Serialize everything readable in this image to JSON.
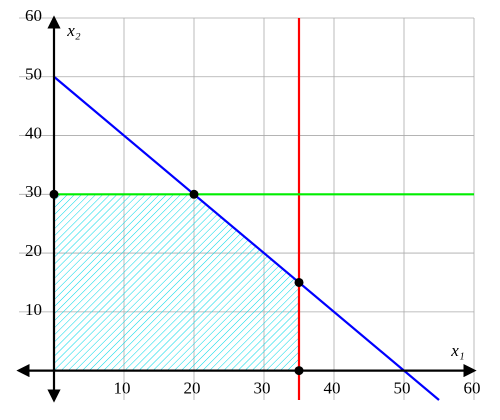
{
  "chart_data": {
    "type": "line",
    "x_label": "x₁",
    "y_label": "x₂",
    "xlim": [
      -5,
      60
    ],
    "ylim": [
      -5,
      60
    ],
    "xticks": [
      10,
      20,
      30,
      40,
      50,
      60
    ],
    "yticks": [
      10,
      20,
      30,
      40,
      50,
      60
    ],
    "grid": true,
    "series": [
      {
        "style": "hatch",
        "color": "#00d8e8",
        "x": [
          0,
          0,
          20,
          35,
          35
        ],
        "values": [
          0,
          30,
          30,
          15,
          0
        ]
      },
      {
        "style": "line",
        "color": "#0000ff",
        "x": [
          0,
          55
        ],
        "values": [
          50,
          -5
        ]
      },
      {
        "style": "line",
        "color": "#ff0000",
        "x": [
          35,
          35
        ],
        "values": [
          -5,
          60
        ]
      },
      {
        "style": "line",
        "color": "#00ee00",
        "x": [
          0,
          60
        ],
        "values": [
          30,
          30
        ]
      },
      {
        "style": "points",
        "color": "#000000",
        "x": [
          0,
          20,
          35,
          35
        ],
        "values": [
          30,
          30,
          15,
          0
        ]
      }
    ]
  }
}
